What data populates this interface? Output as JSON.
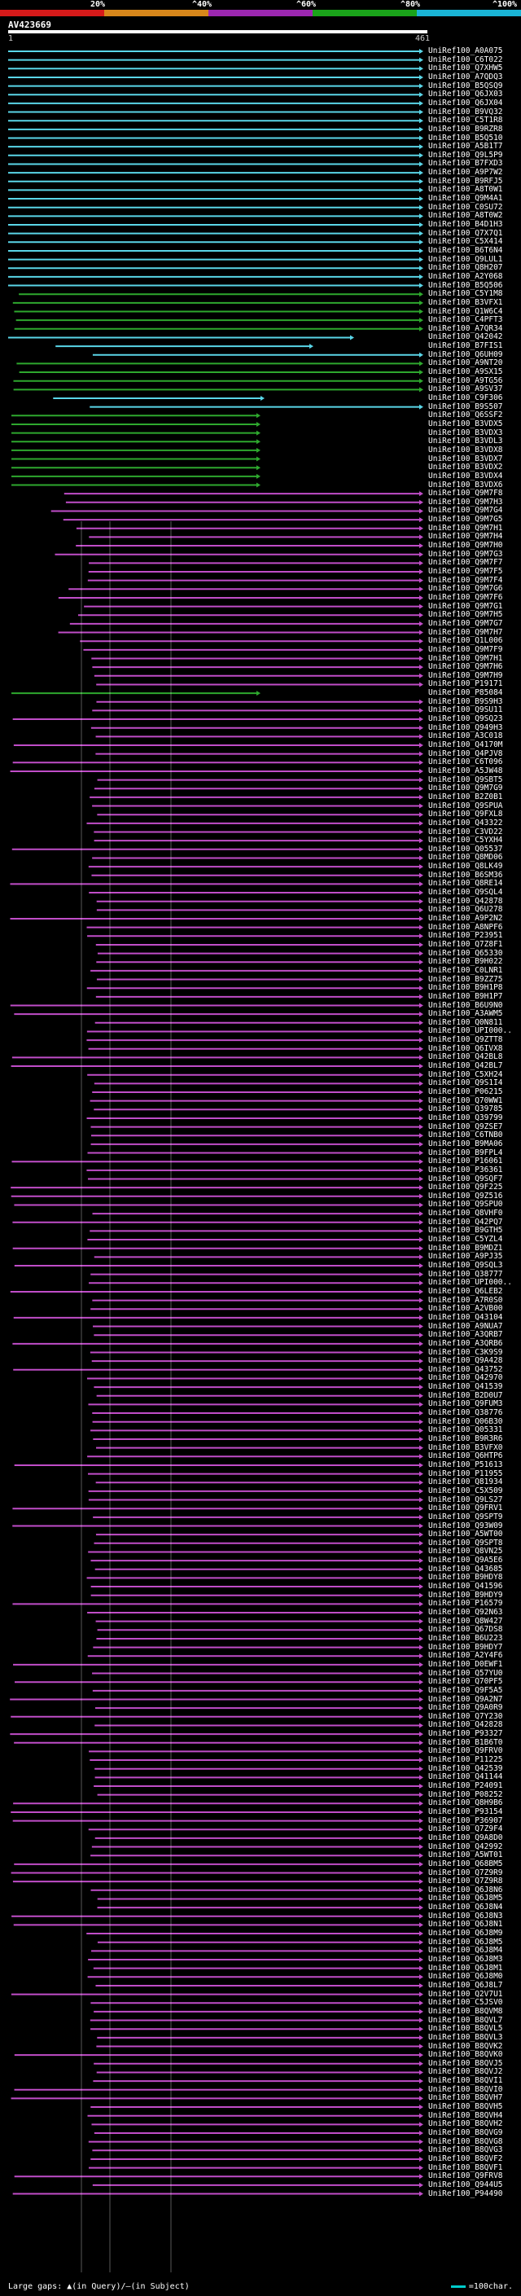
{
  "scale": {
    "labels": [
      "20%",
      "^40%",
      "^60%",
      "^80%",
      "^100%"
    ],
    "colors": [
      "#d61a1a",
      "#d7871b",
      "#9c27b0",
      "#1aa31a",
      "#1ab4d6"
    ]
  },
  "query": {
    "title": "AV423669",
    "start": "1",
    "end": "461"
  },
  "legend": {
    "large_gaps": "Large gaps: ▲(in Query)/—(in Subject)",
    "scale_note": "=100char."
  },
  "colors": {
    "cyan": "#5ad6e8",
    "green": "#2ea82e",
    "magenta": "#c04dc8",
    "white": "#ffffff"
  },
  "hits": [
    {
      "acc": "UniRef100_A0A075",
      "color": "cyan"
    },
    {
      "acc": "UniRef100_C6T022",
      "color": "cyan"
    },
    {
      "acc": "UniRef100_Q7XHW5",
      "color": "cyan"
    },
    {
      "acc": "UniRef100_A7QDQ3",
      "color": "cyan"
    },
    {
      "acc": "UniRef100_B5QSQ9",
      "color": "cyan"
    },
    {
      "acc": "UniRef100_Q6JX03",
      "color": "cyan"
    },
    {
      "acc": "UniRef100_Q6JX04",
      "color": "cyan"
    },
    {
      "acc": "UniRef100_B9VQ32",
      "color": "cyan"
    },
    {
      "acc": "UniRef100_C5T1R8",
      "color": "cyan"
    },
    {
      "acc": "UniRef100_B9RZR8",
      "color": "cyan"
    },
    {
      "acc": "UniRef100_B5Q510",
      "color": "cyan"
    },
    {
      "acc": "UniRef100_A5B1T7",
      "color": "cyan"
    },
    {
      "acc": "UniRef100_Q9L5P9",
      "color": "cyan"
    },
    {
      "acc": "UniRef100_B7FXD3",
      "color": "cyan"
    },
    {
      "acc": "UniRef100_A9P7W2",
      "color": "cyan"
    },
    {
      "acc": "UniRef100_B9RFJ5",
      "color": "cyan"
    },
    {
      "acc": "UniRef100_A8T0W1",
      "color": "cyan"
    },
    {
      "acc": "UniRef100_Q9M4A1",
      "color": "cyan"
    },
    {
      "acc": "UniRef100_C0SU72",
      "color": "cyan"
    },
    {
      "acc": "UniRef100_A8T0W2",
      "color": "cyan"
    },
    {
      "acc": "UniRef100_B4D1H3",
      "color": "cyan"
    },
    {
      "acc": "UniRef100_Q7X7Q1",
      "color": "cyan"
    },
    {
      "acc": "UniRef100_C5X414",
      "color": "cyan"
    },
    {
      "acc": "UniRef100_B6T6N4",
      "color": "cyan"
    },
    {
      "acc": "UniRef100_Q9LUL1",
      "color": "cyan"
    },
    {
      "acc": "UniRef100_Q8H207",
      "color": "cyan"
    },
    {
      "acc": "UniRef100_A2Y068",
      "color": "cyan"
    },
    {
      "acc": "UniRef100_B5Q506",
      "color": "cyan"
    },
    {
      "acc": "UniRef100_C5Y1M8",
      "color": "green"
    },
    {
      "acc": "UniRef100_B3VFX1",
      "color": "green"
    },
    {
      "acc": "UniRef100_Q1W6C4",
      "color": "green"
    },
    {
      "acc": "UniRef100_C4PFT3",
      "color": "green"
    },
    {
      "acc": "UniRef100_A7QR34",
      "color": "green"
    },
    {
      "acc": "UniRef100_Q42042",
      "color": "cyan"
    },
    {
      "acc": "UniRef100_B7FIS1",
      "color": "cyan"
    },
    {
      "acc": "UniRef100_Q6UH09",
      "color": "cyan"
    },
    {
      "acc": "UniRef100_A9NT20",
      "color": "green"
    },
    {
      "acc": "UniRef100_A9SX15",
      "color": "green"
    },
    {
      "acc": "UniRef100_A9TG56",
      "color": "green"
    },
    {
      "acc": "UniRef100_A9SV37",
      "color": "green"
    },
    {
      "acc": "UniRef100_C9F306",
      "color": "cyan"
    },
    {
      "acc": "UniRef100_B9S507",
      "color": "cyan"
    },
    {
      "acc": "UniRef100_Q6SSF2",
      "color": "green"
    },
    {
      "acc": "UniRef100_B3VDX5",
      "color": "green"
    },
    {
      "acc": "UniRef100_B3VDX3",
      "color": "green"
    },
    {
      "acc": "UniRef100_B3VDL3",
      "color": "green"
    },
    {
      "acc": "UniRef100_B3VDX8",
      "color": "green"
    },
    {
      "acc": "UniRef100_B3VDX7",
      "color": "green"
    },
    {
      "acc": "UniRef100_B3VDX2",
      "color": "green"
    },
    {
      "acc": "UniRef100_B3VDX4",
      "color": "green"
    },
    {
      "acc": "UniRef100_B3VDX6",
      "color": "green"
    },
    {
      "acc": "UniRef100_Q9M7F8",
      "color": "magenta"
    },
    {
      "acc": "UniRef100_Q9M7H3",
      "color": "magenta"
    },
    {
      "acc": "UniRef100_Q9M7G4",
      "color": "magenta"
    },
    {
      "acc": "UniRef100_Q9M7G5",
      "color": "magenta"
    },
    {
      "acc": "UniRef100_Q9M7H1",
      "color": "magenta"
    },
    {
      "acc": "UniRef100_Q9M7H4",
      "color": "magenta"
    },
    {
      "acc": "UniRef100_Q9M7H0",
      "color": "magenta"
    },
    {
      "acc": "UniRef100_Q9M7G3",
      "color": "magenta"
    },
    {
      "acc": "UniRef100_Q9M7F7",
      "color": "magenta"
    },
    {
      "acc": "UniRef100_Q9M7F5",
      "color": "magenta"
    },
    {
      "acc": "UniRef100_Q9M7F4",
      "color": "magenta"
    },
    {
      "acc": "UniRef100_Q9M7G6",
      "color": "magenta"
    },
    {
      "acc": "UniRef100_Q9M7F6",
      "color": "magenta"
    },
    {
      "acc": "UniRef100_Q9M7G1",
      "color": "magenta"
    },
    {
      "acc": "UniRef100_Q9M7H5",
      "color": "magenta"
    },
    {
      "acc": "UniRef100_Q9M7G7",
      "color": "magenta"
    },
    {
      "acc": "UniRef100_Q9M7H7",
      "color": "magenta"
    },
    {
      "acc": "UniRef100_Q1L006",
      "color": "magenta"
    },
    {
      "acc": "UniRef100_Q9M7F9",
      "color": "magenta"
    },
    {
      "acc": "UniRef100_Q9M7H1",
      "color": "magenta"
    },
    {
      "acc": "UniRef100_Q9M7H6",
      "color": "magenta"
    },
    {
      "acc": "UniRef100_Q9M7H9",
      "color": "magenta"
    },
    {
      "acc": "UniRef100_P19171",
      "color": "magenta"
    },
    {
      "acc": "UniRef100_P85084",
      "color": "green"
    },
    {
      "acc": "UniRef100_B9S9H3",
      "color": "magenta"
    },
    {
      "acc": "UniRef100_Q9SU11",
      "color": "magenta"
    },
    {
      "acc": "UniRef100_Q9SQ23",
      "color": "magenta"
    },
    {
      "acc": "UniRef100_Q949H3",
      "color": "magenta"
    },
    {
      "acc": "UniRef100_A3C018",
      "color": "magenta"
    },
    {
      "acc": "UniRef100_Q4170M",
      "color": "magenta"
    },
    {
      "acc": "UniRef100_Q4PJV8",
      "color": "magenta"
    },
    {
      "acc": "UniRef100_C6T096",
      "color": "magenta"
    },
    {
      "acc": "UniRef100_A5JW48",
      "color": "magenta"
    },
    {
      "acc": "UniRef100_Q9SBT5",
      "color": "magenta"
    },
    {
      "acc": "UniRef100_Q9M7G9",
      "color": "magenta"
    },
    {
      "acc": "UniRef100_B2Z0B1",
      "color": "magenta"
    },
    {
      "acc": "UniRef100_Q9SPUA",
      "color": "magenta"
    },
    {
      "acc": "UniRef100_Q9FXL8",
      "color": "magenta"
    },
    {
      "acc": "UniRef100_Q43322",
      "color": "magenta"
    },
    {
      "acc": "UniRef100_C3VD22",
      "color": "magenta"
    },
    {
      "acc": "UniRef100_C5YXH4",
      "color": "magenta"
    },
    {
      "acc": "UniRef100_Q05537",
      "color": "magenta"
    },
    {
      "acc": "UniRef100_Q8MD06",
      "color": "magenta"
    },
    {
      "acc": "UniRef100_Q8LK49",
      "color": "magenta"
    },
    {
      "acc": "UniRef100_B6SM36",
      "color": "magenta"
    },
    {
      "acc": "UniRef100_Q8RE14",
      "color": "magenta"
    },
    {
      "acc": "UniRef100_Q9SQL4",
      "color": "magenta"
    },
    {
      "acc": "UniRef100_Q42878",
      "color": "magenta"
    },
    {
      "acc": "UniRef100_Q6U278",
      "color": "magenta"
    },
    {
      "acc": "UniRef100_A9P2N2",
      "color": "magenta"
    },
    {
      "acc": "UniRef100_A8NPF6",
      "color": "magenta"
    },
    {
      "acc": "UniRef100_P23951",
      "color": "magenta"
    },
    {
      "acc": "UniRef100_Q7Z8F1",
      "color": "magenta"
    },
    {
      "acc": "UniRef100_Q65330",
      "color": "magenta"
    },
    {
      "acc": "UniRef100_B9H022",
      "color": "magenta"
    },
    {
      "acc": "UniRef100_C0LNR1",
      "color": "magenta"
    },
    {
      "acc": "UniRef100_B9ZZ75",
      "color": "magenta"
    },
    {
      "acc": "UniRef100_B9H1P8",
      "color": "magenta"
    },
    {
      "acc": "UniRef100_B9H1P7",
      "color": "magenta"
    },
    {
      "acc": "UniRef100_B6U9N0",
      "color": "magenta"
    },
    {
      "acc": "UniRef100_A3AWM5",
      "color": "magenta"
    },
    {
      "acc": "UniRef100_Q0N811",
      "color": "magenta"
    },
    {
      "acc": "UniRef100_UPI000..",
      "color": "magenta"
    },
    {
      "acc": "UniRef100_Q9ZTT8",
      "color": "magenta"
    },
    {
      "acc": "UniRef100_Q6IVX8",
      "color": "magenta"
    },
    {
      "acc": "UniRef100_Q42BL8",
      "color": "magenta"
    },
    {
      "acc": "UniRef100_Q42BL7",
      "color": "magenta"
    },
    {
      "acc": "UniRef100_C5XH24",
      "color": "magenta"
    },
    {
      "acc": "UniRef100_Q9S1I4",
      "color": "magenta"
    },
    {
      "acc": "UniRef100_P06215",
      "color": "magenta"
    },
    {
      "acc": "UniRef100_Q70WW1",
      "color": "magenta"
    },
    {
      "acc": "UniRef100_Q39785",
      "color": "magenta"
    },
    {
      "acc": "UniRef100_Q39799",
      "color": "magenta"
    },
    {
      "acc": "UniRef100_Q9ZSE7",
      "color": "magenta"
    },
    {
      "acc": "UniRef100_C6TNB0",
      "color": "magenta"
    },
    {
      "acc": "UniRef100_B9MA06",
      "color": "magenta"
    },
    {
      "acc": "UniRef100_B9FPL4",
      "color": "magenta"
    },
    {
      "acc": "UniRef100_P16061",
      "color": "magenta"
    },
    {
      "acc": "UniRef100_P36361",
      "color": "magenta"
    },
    {
      "acc": "UniRef100_Q9SQF7",
      "color": "magenta"
    },
    {
      "acc": "UniRef100_Q9F225",
      "color": "magenta"
    },
    {
      "acc": "UniRef100_Q9Z516",
      "color": "magenta"
    },
    {
      "acc": "UniRef100_Q9SPU0",
      "color": "magenta"
    },
    {
      "acc": "UniRef100_Q8VHF0",
      "color": "magenta"
    },
    {
      "acc": "UniRef100_Q42PQ7",
      "color": "magenta"
    },
    {
      "acc": "UniRef100_B9GTH5",
      "color": "magenta"
    },
    {
      "acc": "UniRef100_C5YZL4",
      "color": "magenta"
    },
    {
      "acc": "UniRef100_B9MDZ1",
      "color": "magenta"
    },
    {
      "acc": "UniRef100_A9PJ35",
      "color": "magenta"
    },
    {
      "acc": "UniRef100_Q9SQL3",
      "color": "magenta"
    },
    {
      "acc": "UniRef100_Q38777",
      "color": "magenta"
    },
    {
      "acc": "UniRef100_UPI000..",
      "color": "magenta"
    },
    {
      "acc": "UniRef100_Q6LEB2",
      "color": "magenta"
    },
    {
      "acc": "UniRef100_A7R0S0",
      "color": "magenta"
    },
    {
      "acc": "UniRef100_A2VB00",
      "color": "magenta"
    },
    {
      "acc": "UniRef100_Q43104",
      "color": "magenta"
    },
    {
      "acc": "UniRef100_A9NUA7",
      "color": "magenta"
    },
    {
      "acc": "UniRef100_A3QRB7",
      "color": "magenta"
    },
    {
      "acc": "UniRef100_A3QRB6",
      "color": "magenta"
    },
    {
      "acc": "UniRef100_C3K9S9",
      "color": "magenta"
    },
    {
      "acc": "UniRef100_Q9A428",
      "color": "magenta"
    },
    {
      "acc": "UniRef100_Q43752",
      "color": "magenta"
    },
    {
      "acc": "UniRef100_Q42970",
      "color": "magenta"
    },
    {
      "acc": "UniRef100_Q41539",
      "color": "magenta"
    },
    {
      "acc": "UniRef100_B2D0U7",
      "color": "magenta"
    },
    {
      "acc": "UniRef100_Q9FUM3",
      "color": "magenta"
    },
    {
      "acc": "UniRef100_Q38776",
      "color": "magenta"
    },
    {
      "acc": "UniRef100_Q06B30",
      "color": "magenta"
    },
    {
      "acc": "UniRef100_Q05331",
      "color": "magenta"
    },
    {
      "acc": "UniRef100_B9R3R6",
      "color": "magenta"
    },
    {
      "acc": "UniRef100_B3VFX0",
      "color": "magenta"
    },
    {
      "acc": "UniRef100_Q6HTP6",
      "color": "magenta"
    },
    {
      "acc": "UniRef100_P51613",
      "color": "magenta"
    },
    {
      "acc": "UniRef100_P11955",
      "color": "magenta"
    },
    {
      "acc": "UniRef100_Q81934",
      "color": "magenta"
    },
    {
      "acc": "UniRef100_C5X509",
      "color": "magenta"
    },
    {
      "acc": "UniRef100_Q9LS27",
      "color": "magenta"
    },
    {
      "acc": "UniRef100_Q9FRV1",
      "color": "magenta"
    },
    {
      "acc": "UniRef100_Q9SPT9",
      "color": "magenta"
    },
    {
      "acc": "UniRef100_Q93W09",
      "color": "magenta"
    },
    {
      "acc": "UniRef100_A5WT00",
      "color": "magenta"
    },
    {
      "acc": "UniRef100_Q9SPT8",
      "color": "magenta"
    },
    {
      "acc": "UniRef100_Q8VN25",
      "color": "magenta"
    },
    {
      "acc": "UniRef100_Q9A5E6",
      "color": "magenta"
    },
    {
      "acc": "UniRef100_Q43685",
      "color": "magenta"
    },
    {
      "acc": "UniRef100_B9HDY8",
      "color": "magenta"
    },
    {
      "acc": "UniRef100_Q41596",
      "color": "magenta"
    },
    {
      "acc": "UniRef100_B9HDY9",
      "color": "magenta"
    },
    {
      "acc": "UniRef100_P16579",
      "color": "magenta"
    },
    {
      "acc": "UniRef100_Q92N63",
      "color": "magenta"
    },
    {
      "acc": "UniRef100_Q8W427",
      "color": "magenta"
    },
    {
      "acc": "UniRef100_Q67DS8",
      "color": "magenta"
    },
    {
      "acc": "UniRef100_B6U223",
      "color": "magenta"
    },
    {
      "acc": "UniRef100_B9HDY7",
      "color": "magenta"
    },
    {
      "acc": "UniRef100_A2Y4F6",
      "color": "magenta"
    },
    {
      "acc": "UniRef100_D0EWF1",
      "color": "magenta"
    },
    {
      "acc": "UniRef100_Q57YU0",
      "color": "magenta"
    },
    {
      "acc": "UniRef100_Q70PF5",
      "color": "magenta"
    },
    {
      "acc": "UniRef100_Q9F5A5",
      "color": "magenta"
    },
    {
      "acc": "UniRef100_Q9A2N7",
      "color": "magenta"
    },
    {
      "acc": "UniRef100_Q9A0R9",
      "color": "magenta"
    },
    {
      "acc": "UniRef100_Q7Y230",
      "color": "magenta"
    },
    {
      "acc": "UniRef100_Q42828",
      "color": "magenta"
    },
    {
      "acc": "UniRef100_P93327",
      "color": "magenta"
    },
    {
      "acc": "UniRef100_B1B6T0",
      "color": "magenta"
    },
    {
      "acc": "UniRef100_Q9FRV0",
      "color": "magenta"
    },
    {
      "acc": "UniRef100_P11225",
      "color": "magenta"
    },
    {
      "acc": "UniRef100_Q42539",
      "color": "magenta"
    },
    {
      "acc": "UniRef100_Q41144",
      "color": "magenta"
    },
    {
      "acc": "UniRef100_P24091",
      "color": "magenta"
    },
    {
      "acc": "UniRef100_P08252",
      "color": "magenta"
    },
    {
      "acc": "UniRef100_Q8H9B6",
      "color": "magenta"
    },
    {
      "acc": "UniRef100_P93154",
      "color": "magenta"
    },
    {
      "acc": "UniRef100_P36907",
      "color": "magenta"
    },
    {
      "acc": "UniRef100_Q7Z9F4",
      "color": "magenta"
    },
    {
      "acc": "UniRef100_Q9A8D0",
      "color": "magenta"
    },
    {
      "acc": "UniRef100_Q42992",
      "color": "magenta"
    },
    {
      "acc": "UniRef100_A5WT01",
      "color": "magenta"
    },
    {
      "acc": "UniRef100_Q68BM5",
      "color": "magenta"
    },
    {
      "acc": "UniRef100_Q7Z9R9",
      "color": "magenta"
    },
    {
      "acc": "UniRef100_Q7Z9R8",
      "color": "magenta"
    },
    {
      "acc": "UniRef100_Q6J8N6",
      "color": "magenta"
    },
    {
      "acc": "UniRef100_Q6J8M5",
      "color": "magenta"
    },
    {
      "acc": "UniRef100_Q6J8N4",
      "color": "magenta"
    },
    {
      "acc": "UniRef100_Q6J8N3",
      "color": "magenta"
    },
    {
      "acc": "UniRef100_Q6J8N1",
      "color": "magenta"
    },
    {
      "acc": "UniRef100_Q6J8M9",
      "color": "magenta"
    },
    {
      "acc": "UniRef100_Q6J8M5",
      "color": "magenta"
    },
    {
      "acc": "UniRef100_Q6J8M4",
      "color": "magenta"
    },
    {
      "acc": "UniRef100_Q6J8M3",
      "color": "magenta"
    },
    {
      "acc": "UniRef100_Q6J8M1",
      "color": "magenta"
    },
    {
      "acc": "UniRef100_Q6J8M0",
      "color": "magenta"
    },
    {
      "acc": "UniRef100_Q6J8L7",
      "color": "magenta"
    },
    {
      "acc": "UniRef100_Q2V7U1",
      "color": "magenta"
    },
    {
      "acc": "UniRef100_C5JSV0",
      "color": "magenta"
    },
    {
      "acc": "UniRef100_B8QVM8",
      "color": "magenta"
    },
    {
      "acc": "UniRef100_B8QVL7",
      "color": "magenta"
    },
    {
      "acc": "UniRef100_B8QVL5",
      "color": "magenta"
    },
    {
      "acc": "UniRef100_B8QVL3",
      "color": "magenta"
    },
    {
      "acc": "UniRef100_B8QVK2",
      "color": "magenta"
    },
    {
      "acc": "UniRef100_B8QVK0",
      "color": "magenta"
    },
    {
      "acc": "UniRef100_B8QVJ5",
      "color": "magenta"
    },
    {
      "acc": "UniRef100_B8QVJ2",
      "color": "magenta"
    },
    {
      "acc": "UniRef100_B8QVI1",
      "color": "magenta"
    },
    {
      "acc": "UniRef100_B8QVI0",
      "color": "magenta"
    },
    {
      "acc": "UniRef100_B8QVH7",
      "color": "magenta"
    },
    {
      "acc": "UniRef100_B8QVH5",
      "color": "magenta"
    },
    {
      "acc": "UniRef100_B8QVH4",
      "color": "magenta"
    },
    {
      "acc": "UniRef100_B8QVH2",
      "color": "magenta"
    },
    {
      "acc": "UniRef100_B8QVG9",
      "color": "magenta"
    },
    {
      "acc": "UniRef100_B8QVG8",
      "color": "magenta"
    },
    {
      "acc": "UniRef100_B8QVG3",
      "color": "magenta"
    },
    {
      "acc": "UniRef100_B8QVF2",
      "color": "magenta"
    },
    {
      "acc": "UniRef100_B8QVF1",
      "color": "magenta"
    },
    {
      "acc": "UniRef100_Q9FRV8",
      "color": "magenta"
    },
    {
      "acc": "UniRef100_Q944U5",
      "color": "magenta"
    },
    {
      "acc": "UniRef100_P94490",
      "color": "magenta"
    }
  ]
}
